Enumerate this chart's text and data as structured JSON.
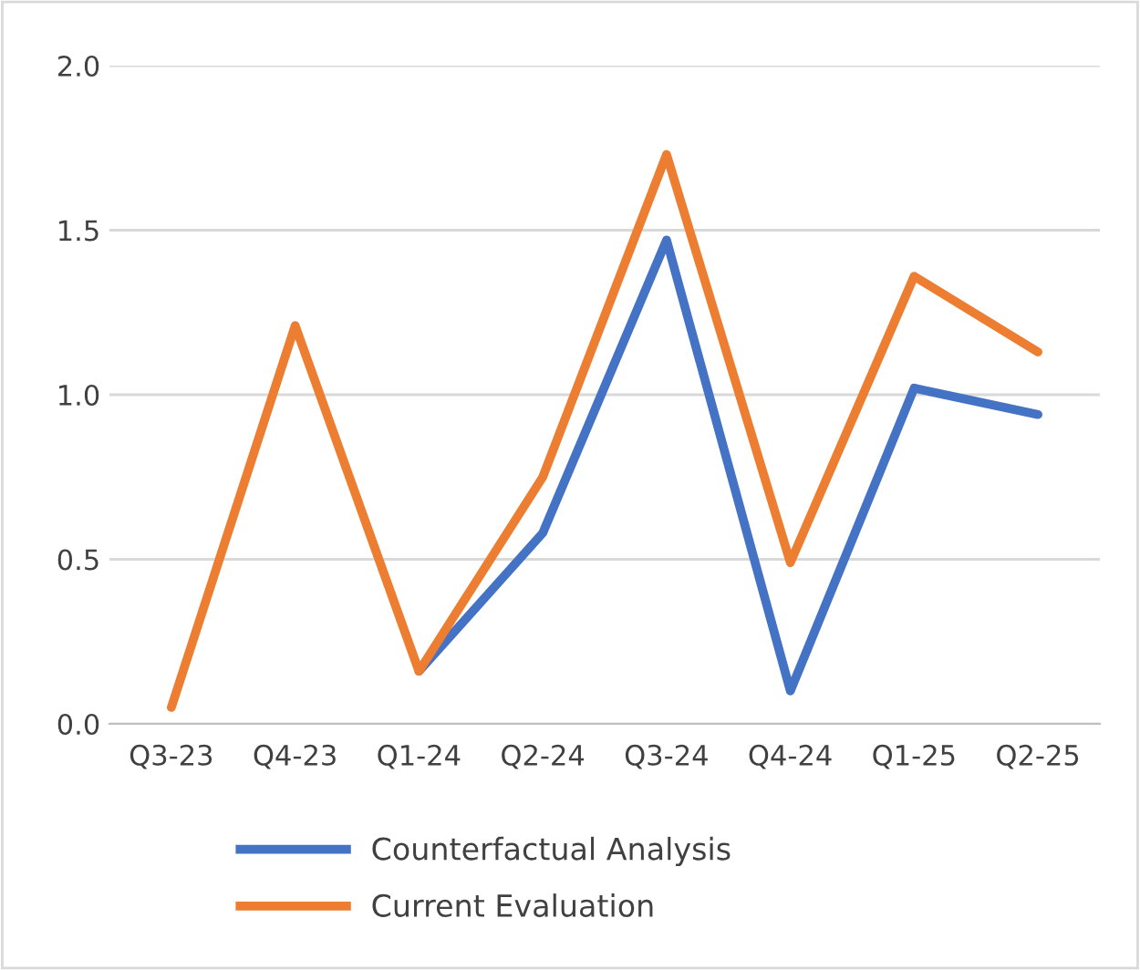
{
  "chart_data": {
    "type": "line",
    "categories": [
      "Q3-23",
      "Q4-23",
      "Q1-24",
      "Q2-24",
      "Q3-24",
      "Q4-24",
      "Q1-25",
      "Q2-25"
    ],
    "series": [
      {
        "name": "Counterfactual Analysis",
        "color": "#4472c4",
        "values": [
          null,
          null,
          0.16,
          0.58,
          1.47,
          0.1,
          1.02,
          0.94
        ]
      },
      {
        "name": "Current Evaluation",
        "color": "#ed7d31",
        "values": [
          0.05,
          1.21,
          0.16,
          0.75,
          1.73,
          0.49,
          1.36,
          1.13
        ]
      }
    ],
    "ylim": [
      0,
      2.0
    ],
    "yticks": [
      {
        "value": 0,
        "label": "0.0"
      },
      {
        "value": 0.5,
        "label": "0.5"
      },
      {
        "value": 1.0,
        "label": "1.0"
      },
      {
        "value": 1.5,
        "label": "1.5"
      },
      {
        "value": 2.0,
        "label": "2.0"
      }
    ],
    "grid": "y",
    "legend": "bottom",
    "marker": "none",
    "line_style": "solid"
  }
}
